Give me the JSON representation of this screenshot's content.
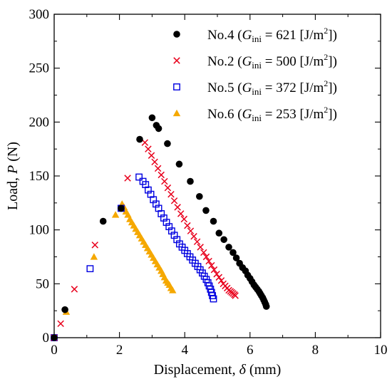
{
  "chart_data": {
    "type": "scatter",
    "xlabel": {
      "prefix": "Displacement, ",
      "symbol": "δ",
      "suffix": " (mm)"
    },
    "ylabel": {
      "prefix": "Load, ",
      "symbol": "P",
      "suffix": " (N)"
    },
    "xlim": [
      0,
      10
    ],
    "ylim": [
      0,
      300
    ],
    "xticks": [
      0,
      2,
      4,
      6,
      8,
      10
    ],
    "yticks": [
      0,
      50,
      100,
      150,
      200,
      250,
      300
    ],
    "xtick_labels": [
      "0",
      "2",
      "4",
      "6",
      "8",
      "10"
    ],
    "ytick_labels": [
      "0",
      "50",
      "100",
      "150",
      "200",
      "250",
      "300"
    ],
    "legend_position": "top-right",
    "grid": false,
    "series": [
      {
        "id": "no4",
        "legend": {
          "name": "No.4",
          "value": "621",
          "unit": "[J/m",
          "unit_sup": "2",
          "unit_end": "]"
        },
        "marker": "circle",
        "color": "#000000",
        "points": [
          [
            0.0,
            0
          ],
          [
            0.33,
            26
          ],
          [
            1.5,
            108
          ],
          [
            2.05,
            120
          ],
          [
            2.62,
            184
          ],
          [
            3.0,
            204
          ],
          [
            3.13,
            197
          ],
          [
            3.2,
            194
          ],
          [
            3.47,
            180
          ],
          [
            3.83,
            161
          ],
          [
            4.17,
            145
          ],
          [
            4.45,
            131
          ],
          [
            4.65,
            118
          ],
          [
            4.88,
            108
          ],
          [
            5.05,
            97
          ],
          [
            5.2,
            91
          ],
          [
            5.35,
            84
          ],
          [
            5.48,
            79
          ],
          [
            5.58,
            74
          ],
          [
            5.68,
            69
          ],
          [
            5.77,
            65
          ],
          [
            5.86,
            62
          ],
          [
            5.93,
            58
          ],
          [
            6.0,
            55
          ],
          [
            6.06,
            52
          ],
          [
            6.12,
            49
          ],
          [
            6.17,
            47
          ],
          [
            6.22,
            45
          ],
          [
            6.27,
            43
          ],
          [
            6.31,
            41
          ],
          [
            6.35,
            39
          ],
          [
            6.39,
            37
          ],
          [
            6.42,
            35
          ],
          [
            6.45,
            33
          ],
          [
            6.48,
            31
          ],
          [
            6.5,
            29
          ]
        ]
      },
      {
        "id": "no2",
        "legend": {
          "name": "No.2",
          "value": "500",
          "unit": "[J/m",
          "unit_sup": "2",
          "unit_end": "]"
        },
        "marker": "x",
        "color": "#e8001c",
        "points": [
          [
            0.0,
            0
          ],
          [
            0.2,
            13
          ],
          [
            0.62,
            45
          ],
          [
            1.25,
            86
          ],
          [
            2.25,
            148
          ],
          [
            2.78,
            181
          ],
          [
            2.88,
            175
          ],
          [
            2.98,
            169
          ],
          [
            3.08,
            163
          ],
          [
            3.18,
            157
          ],
          [
            3.28,
            151
          ],
          [
            3.38,
            145
          ],
          [
            3.48,
            139
          ],
          [
            3.58,
            133
          ],
          [
            3.68,
            127
          ],
          [
            3.78,
            121
          ],
          [
            3.88,
            115
          ],
          [
            3.98,
            110
          ],
          [
            4.08,
            104
          ],
          [
            4.18,
            99
          ],
          [
            4.28,
            94
          ],
          [
            4.38,
            89
          ],
          [
            4.48,
            84
          ],
          [
            4.58,
            79
          ],
          [
            4.66,
            75
          ],
          [
            4.74,
            71
          ],
          [
            4.82,
            67
          ],
          [
            4.9,
            63
          ],
          [
            4.98,
            59
          ],
          [
            5.05,
            56
          ],
          [
            5.12,
            53
          ],
          [
            5.18,
            50
          ],
          [
            5.24,
            48
          ],
          [
            5.3,
            46
          ],
          [
            5.35,
            44
          ],
          [
            5.4,
            43
          ],
          [
            5.44,
            42
          ],
          [
            5.48,
            41
          ],
          [
            5.52,
            40
          ],
          [
            5.55,
            39
          ]
        ]
      },
      {
        "id": "no5",
        "legend": {
          "name": "No.5",
          "value": "372",
          "unit": "[J/m",
          "unit_sup": "2",
          "unit_end": "]"
        },
        "marker": "square",
        "color": "#0000e0",
        "points": [
          [
            0.0,
            0
          ],
          [
            1.1,
            64
          ],
          [
            2.05,
            120
          ],
          [
            2.6,
            149
          ],
          [
            2.72,
            145
          ],
          [
            2.8,
            142
          ],
          [
            2.88,
            137
          ],
          [
            2.96,
            133
          ],
          [
            3.04,
            128
          ],
          [
            3.12,
            124
          ],
          [
            3.2,
            120
          ],
          [
            3.28,
            115
          ],
          [
            3.36,
            111
          ],
          [
            3.44,
            107
          ],
          [
            3.52,
            103
          ],
          [
            3.6,
            99
          ],
          [
            3.68,
            95
          ],
          [
            3.76,
            91
          ],
          [
            3.84,
            87
          ],
          [
            3.92,
            84
          ],
          [
            4.0,
            81
          ],
          [
            4.08,
            78
          ],
          [
            4.16,
            75
          ],
          [
            4.24,
            72
          ],
          [
            4.32,
            69
          ],
          [
            4.4,
            66
          ],
          [
            4.47,
            63
          ],
          [
            4.54,
            60
          ],
          [
            4.6,
            57
          ],
          [
            4.66,
            54
          ],
          [
            4.71,
            51
          ],
          [
            4.75,
            48
          ],
          [
            4.79,
            45
          ],
          [
            4.82,
            42
          ],
          [
            4.85,
            39
          ],
          [
            4.88,
            36
          ]
        ]
      },
      {
        "id": "no6",
        "legend": {
          "name": "No.6",
          "value": "253",
          "unit": "[J/m",
          "unit_sup": "2",
          "unit_end": "]"
        },
        "marker": "triangle",
        "color": "#f5a800",
        "points": [
          [
            0.0,
            0
          ],
          [
            0.37,
            24
          ],
          [
            1.22,
            75
          ],
          [
            1.88,
            114
          ],
          [
            2.08,
            124
          ],
          [
            2.14,
            121
          ],
          [
            2.2,
            117
          ],
          [
            2.26,
            114
          ],
          [
            2.32,
            110
          ],
          [
            2.38,
            107
          ],
          [
            2.44,
            104
          ],
          [
            2.5,
            101
          ],
          [
            2.56,
            98
          ],
          [
            2.62,
            95
          ],
          [
            2.68,
            92
          ],
          [
            2.74,
            89
          ],
          [
            2.8,
            86
          ],
          [
            2.86,
            83
          ],
          [
            2.92,
            80
          ],
          [
            2.98,
            77
          ],
          [
            3.04,
            74
          ],
          [
            3.1,
            71
          ],
          [
            3.16,
            68
          ],
          [
            3.22,
            65
          ],
          [
            3.28,
            62
          ],
          [
            3.33,
            59
          ],
          [
            3.38,
            56
          ],
          [
            3.43,
            53
          ],
          [
            3.48,
            51
          ],
          [
            3.53,
            49
          ],
          [
            3.58,
            46
          ],
          [
            3.63,
            44
          ]
        ]
      }
    ]
  }
}
